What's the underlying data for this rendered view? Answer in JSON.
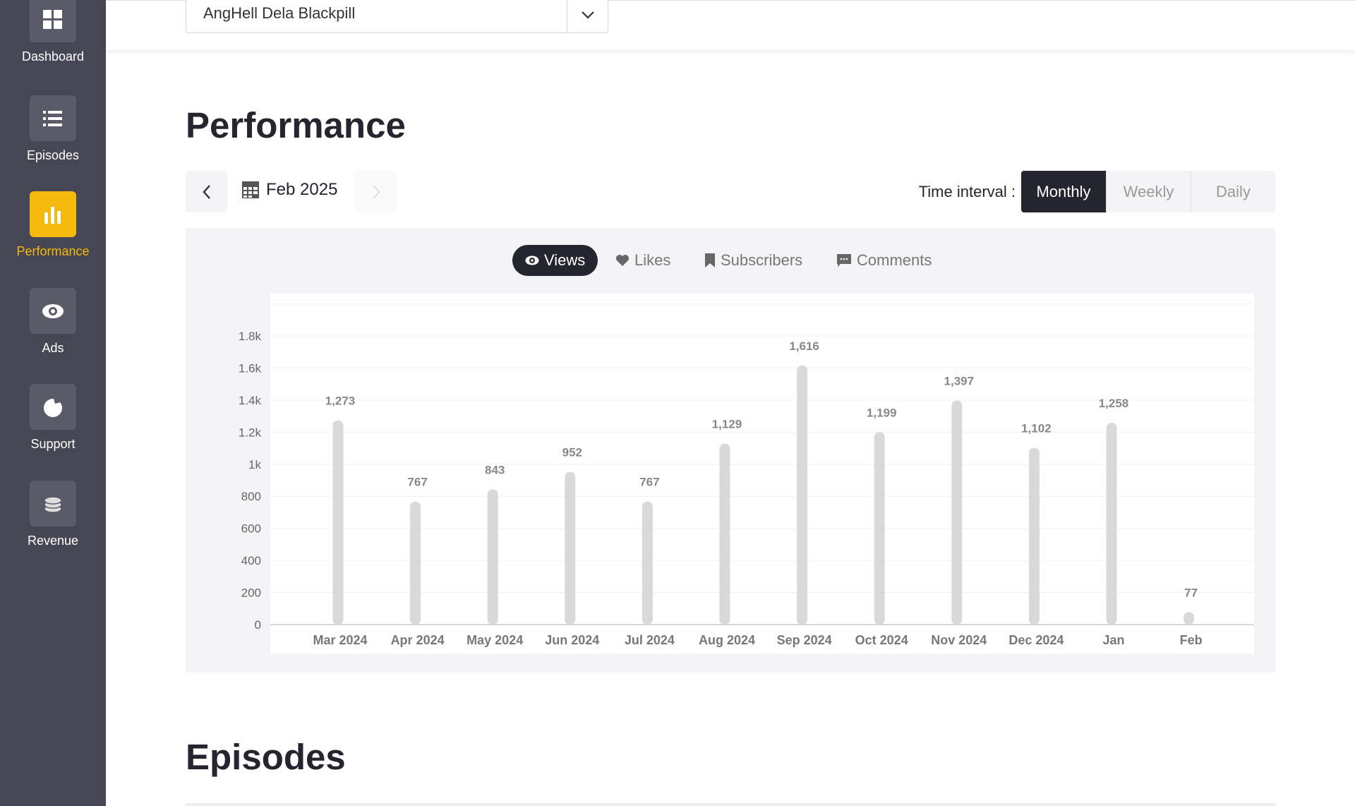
{
  "sidebar": {
    "items": [
      {
        "label": "Dashboard",
        "icon": "grid-icon"
      },
      {
        "label": "Episodes",
        "icon": "list-icon"
      },
      {
        "label": "Performance",
        "icon": "bar-chart-icon",
        "active": true
      },
      {
        "label": "Ads",
        "icon": "eye-icon"
      },
      {
        "label": "Support",
        "icon": "support-icon"
      },
      {
        "label": "Revenue",
        "icon": "coins-icon"
      }
    ]
  },
  "header": {
    "podcast": "AngHell Dela Blackpill"
  },
  "performance": {
    "title": "Performance",
    "date": "Feb 2025",
    "time_interval_label": "Time interval :",
    "intervals": [
      "Monthly",
      "Weekly",
      "Daily"
    ],
    "selected_interval": "Monthly",
    "metrics": [
      "Views",
      "Likes",
      "Subscribers",
      "Comments"
    ],
    "selected_metric": "Views"
  },
  "episodes": {
    "title": "Episodes"
  },
  "colors": {
    "sidebar": "#464655",
    "accent": "#f4b90c",
    "dark": "#25252f",
    "bar": "#d9d9d9"
  },
  "chart_data": {
    "type": "bar",
    "title": "",
    "xlabel": "",
    "ylabel": "",
    "categories": [
      "Mar 2024",
      "Apr 2024",
      "May 2024",
      "Jun 2024",
      "Jul 2024",
      "Aug 2024",
      "Sep 2024",
      "Oct 2024",
      "Nov 2024",
      "Dec 2024",
      "Jan",
      "Feb"
    ],
    "values": [
      1273,
      767,
      843,
      952,
      767,
      1129,
      1616,
      1199,
      1397,
      1102,
      1258,
      77
    ],
    "value_labels": [
      "1,273",
      "767",
      "843",
      "952",
      "767",
      "1,129",
      "1,616",
      "1,199",
      "1,397",
      "1,102",
      "1,258",
      "77"
    ],
    "yticks": [
      0,
      200,
      400,
      600,
      800,
      1000,
      1200,
      1400,
      1600,
      1800
    ],
    "ytick_labels": [
      "0",
      "200",
      "400",
      "600",
      "800",
      "1k",
      "1.2k",
      "1.4k",
      "1.6k",
      "1.8k"
    ],
    "ylim": [
      0,
      2000
    ],
    "grid": true
  }
}
